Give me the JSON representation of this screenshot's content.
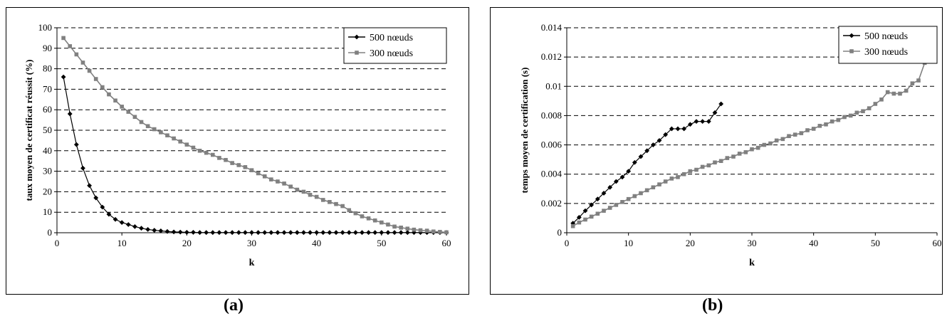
{
  "chart_data": [
    {
      "type": "line",
      "panel_label": "(a)",
      "xlabel": "k",
      "ylabel": "taux moyen de certificat réussit (%)",
      "xlim": [
        0,
        60
      ],
      "ylim": [
        0,
        100
      ],
      "xticks": [
        0,
        10,
        20,
        30,
        40,
        50,
        60
      ],
      "yticks": [
        0,
        10,
        20,
        30,
        40,
        50,
        60,
        70,
        80,
        90,
        100
      ],
      "grid": "horizontal-dashed",
      "legend_position": "top-right",
      "series": [
        {
          "name": "500 nœuds",
          "marker": "diamond",
          "color": "#000000",
          "x": [
            1,
            2,
            3,
            4,
            5,
            6,
            7,
            8,
            9,
            10,
            11,
            12,
            13,
            14,
            15,
            16,
            17,
            18,
            19,
            20,
            21,
            22,
            23,
            24,
            25,
            26,
            27,
            28,
            29,
            30,
            31,
            32,
            33,
            34,
            35,
            36,
            37,
            38,
            39,
            40,
            41,
            42,
            43,
            44,
            45,
            46,
            47,
            48,
            49,
            50,
            51,
            52,
            53,
            54,
            55,
            56,
            57,
            58,
            59,
            60
          ],
          "y": [
            76,
            58,
            43,
            31.5,
            23,
            17,
            12.5,
            9,
            6.5,
            5,
            4,
            3,
            2.2,
            1.6,
            1.2,
            0.9,
            0.6,
            0.4,
            0.3,
            0.2,
            0.2,
            0.1,
            0.1,
            0.1,
            0.1,
            0.1,
            0.1,
            0.1,
            0.1,
            0.1,
            0.1,
            0.1,
            0.1,
            0.1,
            0.1,
            0.1,
            0.1,
            0.1,
            0.1,
            0.1,
            0.1,
            0.1,
            0.1,
            0.1,
            0.1,
            0.1,
            0.1,
            0.1,
            0.1,
            0.1,
            0.1,
            0.1,
            0.1,
            0.1,
            0.1,
            0.1,
            0.1,
            0.1,
            0.1,
            0.1
          ]
        },
        {
          "name": "300 nœuds",
          "marker": "square",
          "color": "#808080",
          "x": [
            1,
            2,
            3,
            4,
            5,
            6,
            7,
            8,
            9,
            10,
            11,
            12,
            13,
            14,
            15,
            16,
            17,
            18,
            19,
            20,
            21,
            22,
            23,
            24,
            25,
            26,
            27,
            28,
            29,
            30,
            31,
            32,
            33,
            34,
            35,
            36,
            37,
            38,
            39,
            40,
            41,
            42,
            43,
            44,
            45,
            46,
            47,
            48,
            49,
            50,
            51,
            52,
            53,
            54,
            55,
            56,
            57,
            58,
            59,
            60
          ],
          "y": [
            95,
            91,
            87,
            83,
            79,
            75,
            71,
            67.5,
            64.5,
            61.5,
            59,
            56.5,
            54,
            52,
            50.5,
            49,
            47.5,
            46,
            44.5,
            43,
            41.5,
            40,
            39,
            38,
            36.5,
            35.5,
            34,
            33,
            32,
            30.5,
            29,
            27.5,
            26,
            25,
            24,
            22.5,
            21,
            20,
            18.5,
            17.5,
            16,
            15,
            14,
            13,
            11,
            9.5,
            8,
            7,
            6,
            5,
            4,
            3,
            2.5,
            2,
            1.5,
            1.2,
            1,
            0.6,
            0.4,
            0.2
          ]
        }
      ]
    },
    {
      "type": "line",
      "panel_label": "(b)",
      "xlabel": "k",
      "ylabel": "temps moyen de certification (s)",
      "xlim": [
        0,
        60
      ],
      "ylim": [
        0,
        0.014
      ],
      "xticks": [
        0,
        10,
        20,
        30,
        40,
        50,
        60
      ],
      "yticks": [
        0,
        0.002,
        0.004,
        0.006,
        0.008,
        0.01,
        0.012,
        0.014
      ],
      "ytick_labels": [
        "0",
        "0.002",
        "0.004",
        "0.006",
        "0.008",
        "0.01",
        "0.012",
        "0.014"
      ],
      "grid": "horizontal-dashed",
      "legend_position": "top-right",
      "series": [
        {
          "name": "500 nœuds",
          "marker": "diamond",
          "color": "#000000",
          "x": [
            1,
            2,
            3,
            4,
            5,
            6,
            7,
            8,
            9,
            10,
            11,
            12,
            13,
            14,
            15,
            16,
            17,
            18,
            19,
            20,
            21,
            22,
            23,
            24,
            25
          ],
          "y": [
            0.00065,
            0.00105,
            0.0015,
            0.0019,
            0.0023,
            0.0027,
            0.0031,
            0.0035,
            0.0038,
            0.0042,
            0.0048,
            0.0052,
            0.0056,
            0.006,
            0.0063,
            0.0067,
            0.0071,
            0.0071,
            0.0071,
            0.0074,
            0.0076,
            0.0076,
            0.0076,
            0.0082,
            0.0088
          ]
        },
        {
          "name": "300 nœuds",
          "marker": "square",
          "color": "#808080",
          "x": [
            1,
            2,
            3,
            4,
            5,
            6,
            7,
            8,
            9,
            10,
            11,
            12,
            13,
            14,
            15,
            16,
            17,
            18,
            19,
            20,
            21,
            22,
            23,
            24,
            25,
            26,
            27,
            28,
            29,
            30,
            31,
            32,
            33,
            34,
            35,
            36,
            37,
            38,
            39,
            40,
            41,
            42,
            43,
            44,
            45,
            46,
            47,
            48,
            49,
            50,
            51,
            52,
            53,
            54,
            55,
            56,
            57,
            58
          ],
          "y": [
            0.00045,
            0.0007,
            0.0009,
            0.0011,
            0.0013,
            0.0015,
            0.0017,
            0.0019,
            0.0021,
            0.0023,
            0.0025,
            0.0027,
            0.0029,
            0.0031,
            0.0033,
            0.0035,
            0.0037,
            0.0038,
            0.004,
            0.0042,
            0.0043,
            0.0045,
            0.0046,
            0.0048,
            0.0049,
            0.0051,
            0.0052,
            0.0054,
            0.0055,
            0.0057,
            0.0058,
            0.006,
            0.0061,
            0.0063,
            0.0064,
            0.0066,
            0.0067,
            0.0068,
            0.007,
            0.0071,
            0.0073,
            0.0074,
            0.0076,
            0.0077,
            0.0079,
            0.008,
            0.0082,
            0.0083,
            0.0085,
            0.0088,
            0.0091,
            0.0096,
            0.0095,
            0.0095,
            0.0097,
            0.0102,
            0.0104,
            0.0116
          ]
        }
      ]
    }
  ]
}
